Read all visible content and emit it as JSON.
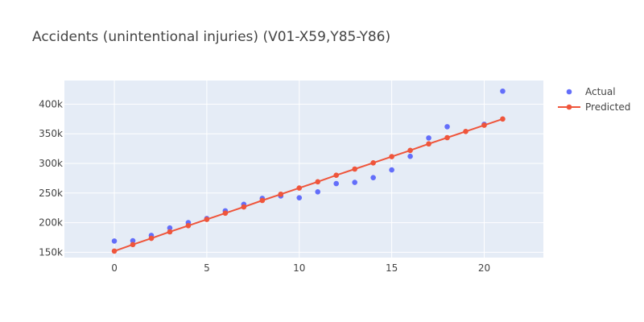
{
  "chart_data": {
    "type": "scatter",
    "title": "Accidents (unintentional injuries) (V01-X59,Y85-Y86)",
    "xlabel": "",
    "ylabel": "",
    "xlim": [
      -2.7,
      23.2
    ],
    "ylim": [
      141000,
      440000
    ],
    "x_ticks": [
      0,
      5,
      10,
      15,
      20
    ],
    "y_ticks": [
      150000,
      200000,
      250000,
      300000,
      350000,
      400000
    ],
    "y_tick_labels": [
      "150k",
      "200k",
      "250k",
      "300k",
      "350k",
      "400k"
    ],
    "grid": true,
    "legend_position": "top-right",
    "series": [
      {
        "name": "Actual",
        "mode": "markers",
        "color": "#636efa",
        "x": [
          0,
          1,
          2,
          3,
          4,
          5,
          6,
          7,
          8,
          9,
          10,
          11,
          12,
          13,
          14,
          15,
          16,
          17,
          18,
          20,
          21
        ],
        "y": [
          169000,
          169500,
          178500,
          191000,
          200000,
          207000,
          220000,
          231000,
          241000,
          245000,
          242000,
          252000,
          266000,
          268000,
          276000,
          289000,
          312000,
          343000,
          362000,
          366000,
          422000
        ]
      },
      {
        "name": "Predicted",
        "mode": "lines+markers",
        "color": "#ef553b",
        "x": [
          0,
          1,
          2,
          3,
          4,
          5,
          6,
          7,
          8,
          9,
          10,
          11,
          12,
          13,
          14,
          15,
          16,
          17,
          18,
          19,
          20,
          21
        ],
        "y": [
          152000,
          163000,
          173500,
          184500,
          195000,
          205500,
          216000,
          226500,
          237500,
          248000,
          258500,
          269000,
          280000,
          290500,
          301000,
          311500,
          322000,
          333000,
          343500,
          354000,
          364500,
          375000
        ]
      }
    ]
  }
}
